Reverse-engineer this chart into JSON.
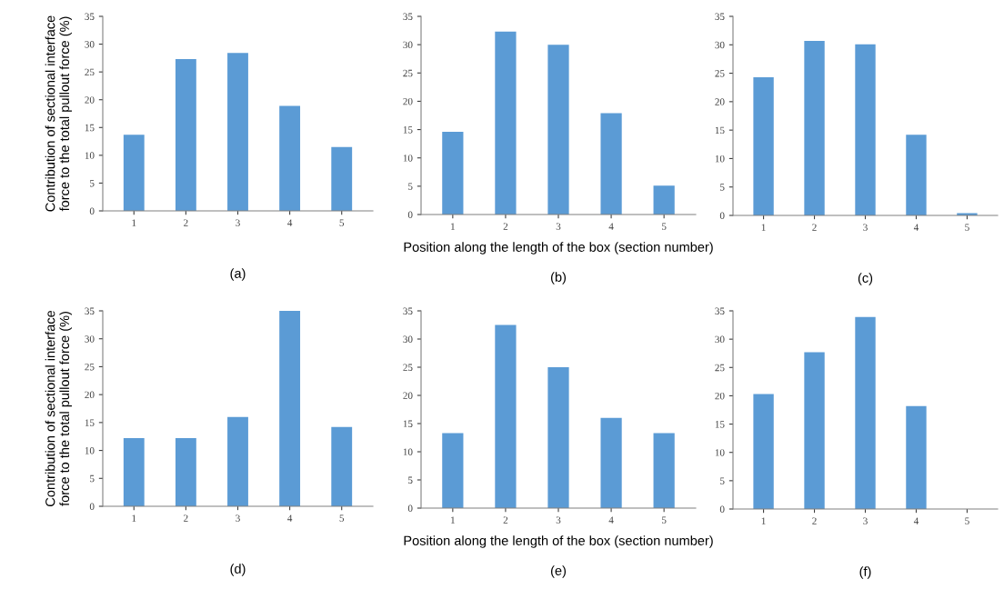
{
  "chart_data": [
    {
      "type": "bar",
      "categories": [
        "1",
        "2",
        "3",
        "4",
        "5"
      ],
      "values": [
        13.7,
        27.3,
        28.4,
        18.9,
        11.5
      ],
      "color": "#5b9bd5",
      "ylim": [
        0,
        35
      ],
      "yticks": [
        0,
        5,
        10,
        15,
        20,
        25,
        30,
        35
      ],
      "ylabel": "Contribution of sectional interface\nforce to the total pullout force (%)",
      "annotations": [
        "(a)"
      ],
      "grid": false
    },
    {
      "type": "bar",
      "categories": [
        "1",
        "2",
        "3",
        "4",
        "5"
      ],
      "values": [
        14.6,
        32.3,
        30.0,
        17.9,
        5.1
      ],
      "color": "#5b9bd5",
      "ylim": [
        0,
        35
      ],
      "yticks": [
        0,
        5,
        10,
        15,
        20,
        25,
        30,
        35
      ],
      "xlabel": "Position along the length of the box (section number)",
      "annotations": [
        "(b)"
      ],
      "grid": false
    },
    {
      "type": "bar",
      "categories": [
        "1",
        "2",
        "3",
        "4",
        "5"
      ],
      "values": [
        24.3,
        30.7,
        30.1,
        14.2,
        0.4
      ],
      "color": "#5b9bd5",
      "ylim": [
        0,
        35
      ],
      "yticks": [
        0,
        5,
        10,
        15,
        20,
        25,
        30,
        35
      ],
      "annotations": [
        "(c)"
      ],
      "grid": false
    },
    {
      "type": "bar",
      "categories": [
        "1",
        "2",
        "3",
        "4",
        "5"
      ],
      "values": [
        12.2,
        12.2,
        16.0,
        35.0,
        14.2
      ],
      "color": "#5b9bd5",
      "ylim": [
        0,
        35
      ],
      "yticks": [
        0,
        5,
        10,
        15,
        20,
        25,
        30,
        35
      ],
      "ylabel": "Contribution of sectional interface\nforce to the total pullout force (%)",
      "annotations": [
        "(d)"
      ],
      "grid": false
    },
    {
      "type": "bar",
      "categories": [
        "1",
        "2",
        "3",
        "4",
        "5"
      ],
      "values": [
        13.3,
        32.5,
        25.0,
        16.0,
        13.3
      ],
      "color": "#5b9bd5",
      "ylim": [
        0,
        35
      ],
      "yticks": [
        0,
        5,
        10,
        15,
        20,
        25,
        30,
        35
      ],
      "xlabel": "Position along the length of the box (section number)",
      "annotations": [
        "(e)"
      ],
      "grid": false
    },
    {
      "type": "bar",
      "categories": [
        "1",
        "2",
        "3",
        "4",
        "5"
      ],
      "values": [
        20.3,
        27.7,
        33.9,
        18.2,
        0
      ],
      "color": "#5b9bd5",
      "ylim": [
        0,
        35
      ],
      "yticks": [
        0,
        5,
        10,
        15,
        20,
        25,
        30,
        35
      ],
      "annotations": [
        "(f)"
      ],
      "grid": false
    }
  ]
}
